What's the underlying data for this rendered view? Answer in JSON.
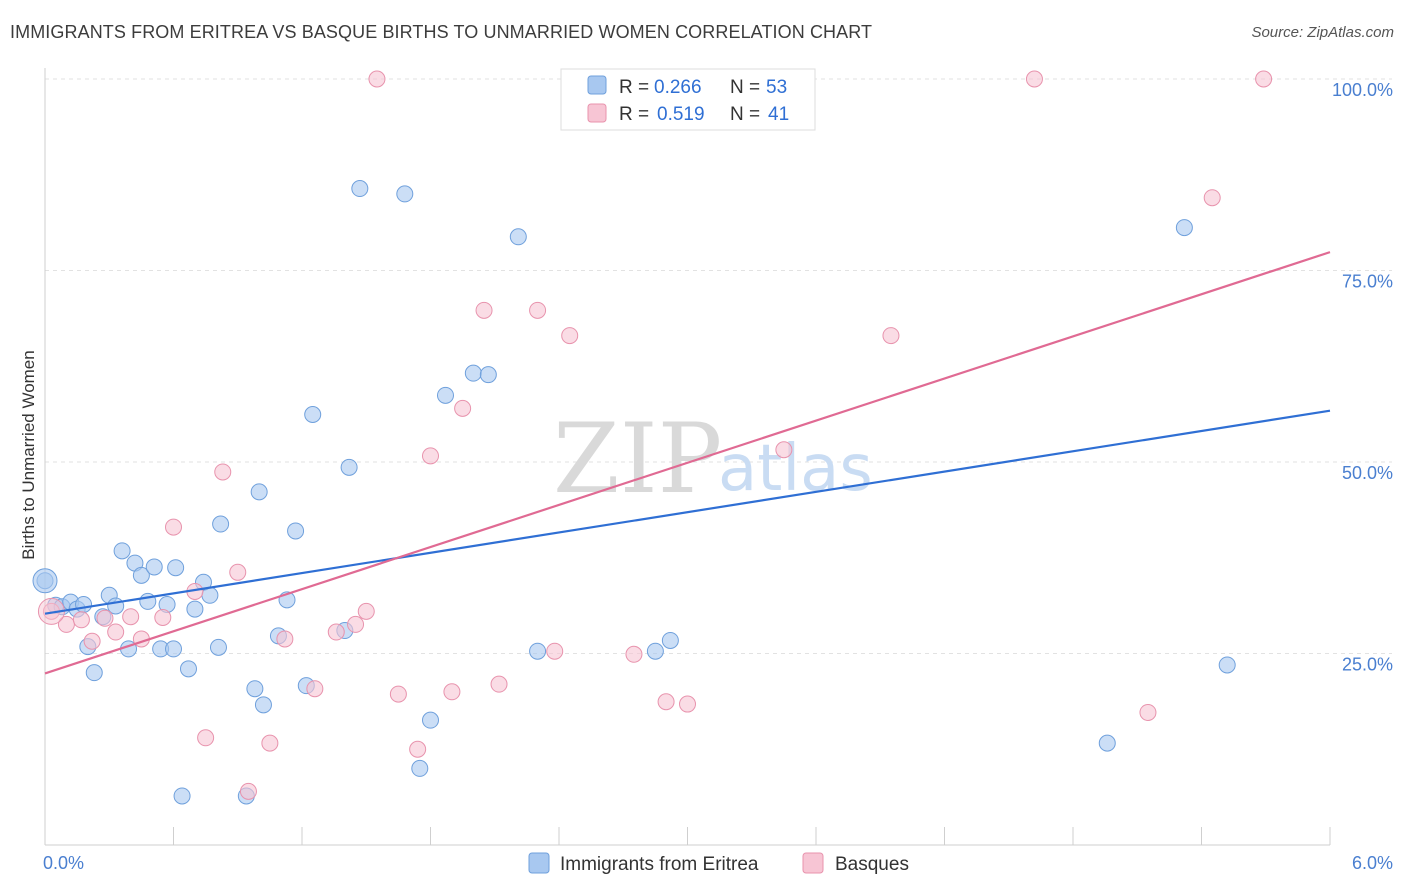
{
  "header": {
    "title": "IMMIGRANTS FROM ERITREA VS BASQUE BIRTHS TO UNMARRIED WOMEN CORRELATION CHART",
    "source": "Source: ZipAtlas.com"
  },
  "watermark": {
    "zip": "ZIP",
    "atlas": "atlas"
  },
  "chart_data": {
    "type": "scatter",
    "title": "IMMIGRANTS FROM ERITREA VS BASQUE BIRTHS TO UNMARRIED WOMEN CORRELATION CHART",
    "xlabel": "",
    "ylabel": "Births to Unmarried Women",
    "xlim": [
      0,
      6
    ],
    "ylim": [
      0,
      100
    ],
    "x_tick_labels": [
      "0.0%",
      "6.0%"
    ],
    "y_ticks": [
      25,
      50,
      75,
      100
    ],
    "y_tick_labels": [
      "25.0%",
      "50.0%",
      "75.0%",
      "100.0%"
    ],
    "grid": true,
    "legend_position": "top-center",
    "series": [
      {
        "name": "Immigrants from Eritrea",
        "color": "#a8c8f0",
        "stroke": "#6fa0dc",
        "line_color": "#2f6fd4",
        "R": "0.266",
        "N": "53",
        "trend": [
          [
            0,
            30.2
          ],
          [
            6,
            56.7
          ]
        ],
        "points": [
          [
            0.0,
            34.5
          ],
          [
            0.05,
            31.3
          ],
          [
            0.08,
            31.1
          ],
          [
            0.12,
            31.7
          ],
          [
            0.15,
            30.8
          ],
          [
            0.18,
            31.4
          ],
          [
            0.2,
            25.9
          ],
          [
            0.23,
            22.5
          ],
          [
            0.27,
            29.8
          ],
          [
            0.3,
            32.6
          ],
          [
            0.33,
            31.2
          ],
          [
            0.36,
            38.4
          ],
          [
            0.39,
            25.6
          ],
          [
            0.42,
            36.8
          ],
          [
            0.45,
            35.2
          ],
          [
            0.48,
            31.8
          ],
          [
            0.51,
            36.3
          ],
          [
            0.54,
            25.6
          ],
          [
            0.57,
            31.4
          ],
          [
            0.61,
            36.2
          ],
          [
            0.64,
            6.4
          ],
          [
            0.67,
            23.0
          ],
          [
            0.7,
            30.8
          ],
          [
            0.74,
            34.3
          ],
          [
            0.77,
            32.6
          ],
          [
            0.81,
            25.8
          ],
          [
            0.82,
            41.9
          ],
          [
            0.94,
            6.4
          ],
          [
            0.98,
            20.4
          ],
          [
            1.0,
            46.1
          ],
          [
            1.02,
            18.3
          ],
          [
            1.09,
            27.3
          ],
          [
            1.13,
            32.0
          ],
          [
            1.17,
            41.0
          ],
          [
            1.22,
            20.8
          ],
          [
            1.25,
            56.2
          ],
          [
            1.4,
            28.0
          ],
          [
            1.42,
            49.3
          ],
          [
            1.47,
            85.7
          ],
          [
            1.68,
            85.0
          ],
          [
            1.75,
            10.0
          ],
          [
            1.8,
            16.3
          ],
          [
            1.87,
            58.7
          ],
          [
            2.0,
            61.6
          ],
          [
            2.07,
            61.4
          ],
          [
            2.21,
            79.4
          ],
          [
            2.3,
            25.3
          ],
          [
            2.85,
            25.3
          ],
          [
            2.92,
            26.7
          ],
          [
            5.32,
            80.6
          ],
          [
            5.52,
            23.5
          ],
          [
            4.96,
            13.3
          ],
          [
            0.6,
            25.6
          ]
        ]
      },
      {
        "name": "Basques",
        "color": "#f7c5d4",
        "stroke": "#e893ad",
        "line_color": "#e06a93",
        "R": "0.519",
        "N": "41",
        "trend": [
          [
            0,
            22.4
          ],
          [
            6,
            77.4
          ]
        ],
        "points": [
          [
            0.03,
            30.5
          ],
          [
            0.1,
            28.8
          ],
          [
            0.17,
            29.4
          ],
          [
            0.22,
            26.6
          ],
          [
            0.28,
            29.6
          ],
          [
            0.33,
            27.8
          ],
          [
            0.4,
            29.8
          ],
          [
            0.45,
            26.9
          ],
          [
            0.55,
            29.7
          ],
          [
            0.6,
            41.5
          ],
          [
            0.7,
            33.1
          ],
          [
            0.75,
            14.0
          ],
          [
            0.83,
            48.7
          ],
          [
            0.9,
            35.6
          ],
          [
            0.95,
            7.0
          ],
          [
            1.05,
            13.3
          ],
          [
            1.12,
            26.9
          ],
          [
            1.26,
            20.4
          ],
          [
            1.36,
            27.8
          ],
          [
            1.45,
            28.8
          ],
          [
            1.5,
            30.5
          ],
          [
            1.55,
            100.0
          ],
          [
            1.65,
            19.7
          ],
          [
            1.74,
            12.5
          ],
          [
            1.8,
            50.8
          ],
          [
            1.9,
            20.0
          ],
          [
            1.95,
            57.0
          ],
          [
            2.05,
            69.8
          ],
          [
            2.12,
            21.0
          ],
          [
            2.3,
            69.8
          ],
          [
            2.38,
            25.3
          ],
          [
            2.45,
            66.5
          ],
          [
            2.75,
            24.9
          ],
          [
            2.9,
            18.7
          ],
          [
            3.0,
            18.4
          ],
          [
            3.45,
            51.6
          ],
          [
            3.95,
            66.5
          ],
          [
            4.62,
            100.0
          ],
          [
            5.15,
            17.3
          ],
          [
            5.45,
            84.5
          ],
          [
            5.69,
            100.0
          ]
        ]
      }
    ]
  }
}
